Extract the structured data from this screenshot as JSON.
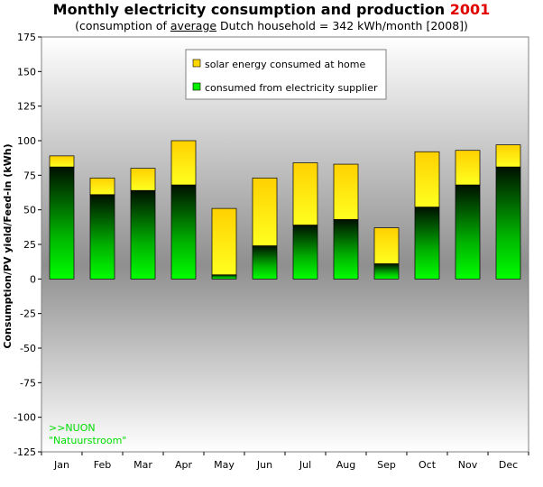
{
  "header": {
    "title_main": "Monthly electricity consumption and production",
    "title_year": "2001",
    "subtitle_pre": "(consumption of ",
    "subtitle_underlined": "average",
    "subtitle_post": " Dutch household = 342 kWh/month [2008])"
  },
  "colors": {
    "solar": "#ffd700",
    "supplier": "#00ee00",
    "note": "#00dd00",
    "year": "#e00000"
  },
  "notes": {
    "line1": ">>NUON",
    "line2": "\"Natuurstroom\""
  },
  "chart_data": {
    "type": "bar",
    "stacked": true,
    "title": "Monthly electricity consumption and production 2001",
    "ylabel": "Consumption/PV yield/Feed-in (kWh)",
    "xlabel": "",
    "ylim": [
      -125,
      175
    ],
    "yticks": [
      175,
      150,
      125,
      100,
      75,
      50,
      25,
      0,
      -25,
      -50,
      -75,
      -100,
      -125
    ],
    "categories": [
      "Jan",
      "Feb",
      "Mar",
      "Apr",
      "May",
      "Jun",
      "Jul",
      "Aug",
      "Sep",
      "Oct",
      "Nov",
      "Dec"
    ],
    "legend_position": "top-center",
    "series": [
      {
        "name": "consumed from electricity supplier",
        "values": [
          81,
          61,
          64,
          68,
          3,
          24,
          39,
          43,
          11,
          52,
          68,
          81
        ]
      },
      {
        "name": "solar energy consumed at home",
        "values": [
          8,
          12,
          16,
          32,
          48,
          49,
          45,
          40,
          26,
          40,
          25,
          16
        ]
      }
    ]
  }
}
